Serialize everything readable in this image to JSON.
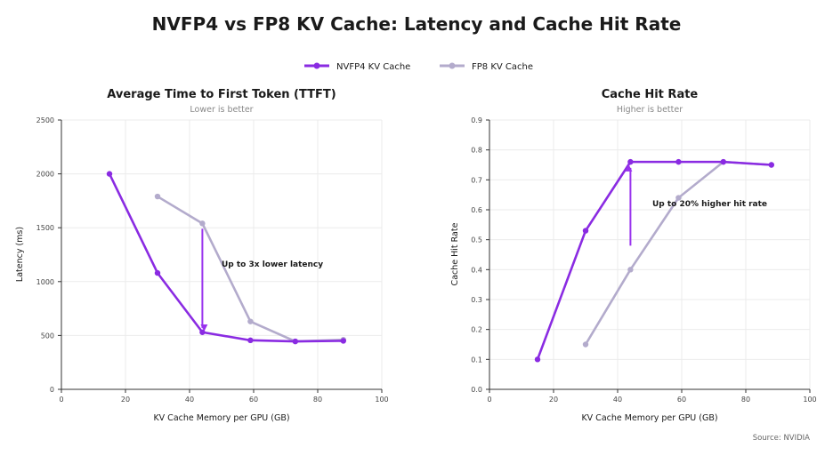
{
  "title": "NVFP4 vs FP8 KV Cache: Latency and Cache Hit Rate",
  "source": "Source: NVIDIA",
  "colors": {
    "nvfp4": "#8a2be2",
    "fp8": "#b3abcc",
    "arrow": "#9933ee"
  },
  "legend": [
    {
      "label": "NVFP4 KV Cache",
      "color": "#8a2be2"
    },
    {
      "label": "FP8 KV Cache",
      "color": "#b3abcc"
    }
  ],
  "legend_position": "top-center",
  "chart_data": [
    {
      "type": "line",
      "title": "Average Time to First Token (TTFT)",
      "subtitle": "Lower is better",
      "xlabel": "KV Cache Memory per GPU (GB)",
      "ylabel": "Latency (ms)",
      "xlim": [
        0,
        100
      ],
      "ylim": [
        0,
        2500
      ],
      "xticks": [
        "0",
        "20",
        "40",
        "60",
        "80",
        "100"
      ],
      "yticks": [
        "0",
        "500",
        "1000",
        "1500",
        "2000",
        "2500"
      ],
      "grid": true,
      "series": [
        {
          "name": "NVFP4 KV Cache",
          "x": [
            15,
            30,
            44,
            59,
            73,
            88
          ],
          "y": [
            2000,
            1080,
            530,
            455,
            445,
            450
          ]
        },
        {
          "name": "FP8 KV Cache",
          "x": [
            30,
            44,
            59,
            73,
            88
          ],
          "y": [
            1790,
            1540,
            630,
            445,
            460
          ]
        }
      ],
      "annotation": {
        "text": "Up to 3x lower latency",
        "arrow": {
          "x": 44,
          "y_from": 1490,
          "y_to": 570
        }
      }
    },
    {
      "type": "line",
      "title": "Cache Hit Rate",
      "subtitle": "Higher is better",
      "xlabel": "KV Cache Memory per GPU (GB)",
      "ylabel": "Cache Hit Rate",
      "xlim": [
        0,
        100
      ],
      "ylim": [
        0,
        0.9
      ],
      "xticks": [
        "0",
        "20",
        "40",
        "60",
        "80",
        "100"
      ],
      "yticks": [
        "0.0",
        "0.1",
        "0.2",
        "0.3",
        "0.4",
        "0.5",
        "0.6",
        "0.7",
        "0.8",
        "0.9"
      ],
      "grid": true,
      "series": [
        {
          "name": "NVFP4 KV Cache",
          "x": [
            15,
            30,
            44,
            59,
            73,
            88
          ],
          "y": [
            0.1,
            0.53,
            0.76,
            0.76,
            0.76,
            0.75
          ]
        },
        {
          "name": "FP8 KV Cache",
          "x": [
            30,
            44,
            59,
            73,
            88
          ],
          "y": [
            0.15,
            0.4,
            0.64,
            0.76,
            0.75
          ]
        }
      ],
      "annotation": {
        "text": "Up to 20% higher hit rate",
        "arrow": {
          "x": 44,
          "y_from": 0.48,
          "y_to": 0.74
        }
      }
    }
  ]
}
